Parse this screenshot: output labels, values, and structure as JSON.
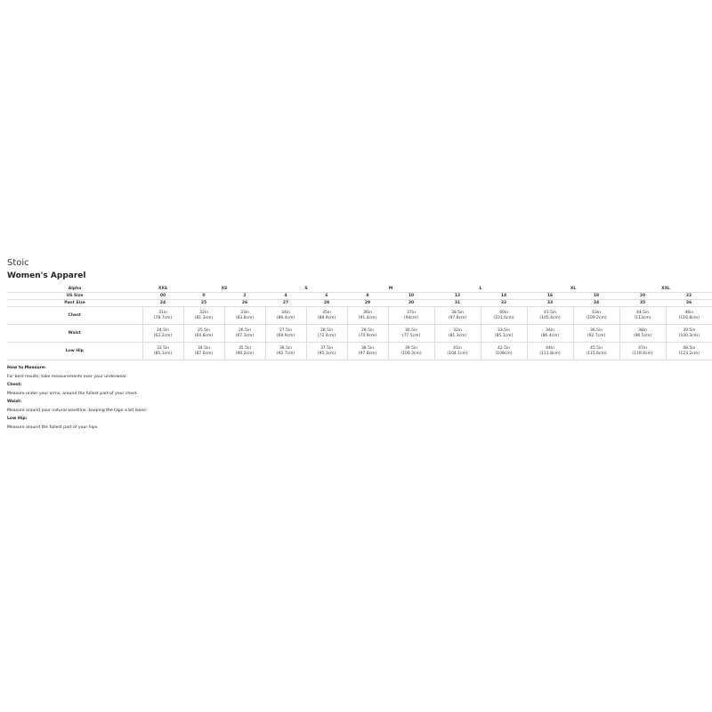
{
  "brand": "Stoic",
  "title": "Women's Apparel",
  "table": {
    "alpha_label": "Alpha",
    "alpha": [
      {
        "label": "XXS",
        "span": 1
      },
      {
        "label": "XS",
        "span": 2
      },
      {
        "label": "S",
        "span": 2
      },
      {
        "label": "M",
        "span": 2
      },
      {
        "label": "L",
        "span": 2
      },
      {
        "label": "XL",
        "span": 2
      },
      {
        "label": "XXL",
        "span": 2
      }
    ],
    "us_label": "US Size",
    "us": [
      "00",
      "0",
      "2",
      "4",
      "6",
      "8",
      "10",
      "12",
      "14",
      "16",
      "18",
      "20",
      "22"
    ],
    "pant_label": "Pant Size",
    "pant": [
      "24",
      "25",
      "26",
      "27",
      "28",
      "29",
      "30",
      "31",
      "32",
      "33",
      "34",
      "35",
      "36"
    ],
    "rows": [
      {
        "label": "Chest",
        "in": [
          "31in",
          "32in",
          "33in",
          "34in",
          "35in",
          "36in",
          "37in",
          "38.5in",
          "40in",
          "41.5in",
          "43in",
          "44.5in",
          "46in"
        ],
        "cm": [
          "(78.7cm)",
          "(81.3cm)",
          "(83.8cm)",
          "(86.4cm)",
          "(88.9cm)",
          "(91.4cm)",
          "(94cm)",
          "(97.8cm)",
          "(101.6cm)",
          "(105.4cm)",
          "(109.2cm)",
          "(113cm)",
          "(116.8cm)"
        ]
      },
      {
        "label": "Waist",
        "in": [
          "24.5in",
          "25.5in",
          "26.5in",
          "27.5in",
          "28.5in",
          "29.5in",
          "30.5in",
          "32in",
          "33.5in",
          "34in",
          "36.5in",
          "38in",
          "39.5in"
        ],
        "cm": [
          "(62.2cm)",
          "(64.8cm)",
          "(67.3cm)",
          "(69.9cm)",
          "(72.4cm)",
          "(74.9cm)",
          "(77.5cm)",
          "(81.3cm)",
          "(85.1cm)",
          "(86.4cm)",
          "(92.7cm)",
          "(96.5cm)",
          "(100.3cm)"
        ]
      },
      {
        "label": "Low Hip",
        "in": [
          "33.5in",
          "34.5in",
          "35.5in",
          "36.5in",
          "37.5in",
          "38.5in",
          "39.5in",
          "41in",
          "42.5in",
          "44in",
          "45.5in",
          "47in",
          "48.5in"
        ],
        "cm": [
          "(85.1cm)",
          "(87.6cm)",
          "(90.2cm)",
          "(92.7cm)",
          "(95.3cm)",
          "(97.8cm)",
          "(100.3cm)",
          "(104.1cm)",
          "(108cm)",
          "(111.8cm)",
          "(115.6cm)",
          "(119.4cm)",
          "(123.2cm)"
        ]
      }
    ]
  },
  "notes": [
    {
      "heading": "How to Measure:",
      "text": "For best results, take measurements over your underwear."
    },
    {
      "heading": "Chest:",
      "text": "Measure under your arms, around the fullest part of your chest."
    },
    {
      "heading": "Waist:",
      "text": "Measure around your natural waistline, keeping the tape a bit loose."
    },
    {
      "heading": "Low Hip:",
      "text": "Measure around the fullest part of your hips."
    }
  ]
}
